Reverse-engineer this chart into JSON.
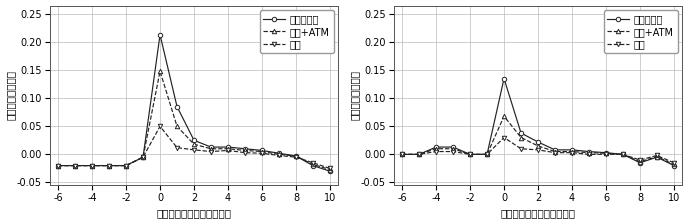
{
  "weeks": [
    -6,
    -5,
    -4,
    -3,
    -2,
    -1,
    0,
    1,
    2,
    3,
    4,
    5,
    6,
    7,
    8,
    9,
    10
  ],
  "left": {
    "all_spending": [
      -0.02,
      -0.02,
      -0.02,
      -0.02,
      -0.02,
      -0.005,
      0.213,
      0.085,
      0.025,
      0.013,
      0.013,
      0.01,
      0.007,
      0.002,
      -0.003,
      -0.02,
      -0.03
    ],
    "consumption_atm": [
      -0.02,
      -0.02,
      -0.02,
      -0.02,
      -0.02,
      -0.005,
      0.148,
      0.05,
      0.018,
      0.01,
      0.01,
      0.007,
      0.005,
      0.0,
      -0.003,
      -0.018,
      -0.027
    ],
    "consumption": [
      -0.02,
      -0.02,
      -0.02,
      -0.02,
      -0.02,
      -0.005,
      0.05,
      0.012,
      0.008,
      0.005,
      0.007,
      0.003,
      0.002,
      -0.002,
      -0.005,
      -0.015,
      -0.025
    ]
  },
  "right": {
    "all_spending": [
      0.0,
      0.0,
      0.013,
      0.013,
      0.0,
      0.0,
      0.135,
      0.038,
      0.022,
      0.008,
      0.008,
      0.005,
      0.003,
      0.0,
      -0.015,
      -0.005,
      -0.02
    ],
    "consumption_atm": [
      0.0,
      0.0,
      0.01,
      0.01,
      0.0,
      0.0,
      0.068,
      0.03,
      0.015,
      0.005,
      0.005,
      0.003,
      0.002,
      0.0,
      -0.013,
      -0.004,
      -0.018
    ],
    "consumption": [
      0.0,
      0.0,
      0.005,
      0.005,
      0.0,
      0.0,
      0.03,
      0.01,
      0.008,
      0.003,
      0.003,
      0.0,
      0.0,
      0.0,
      -0.01,
      -0.002,
      -0.015
    ]
  },
  "legend_labels": [
    "全ての支出",
    "消費+ATM",
    "消費"
  ],
  "ylabel": "給付金への反応度",
  "xlabel": "給付を受けた週からの週数",
  "ylim": [
    -0.055,
    0.265
  ],
  "yticks": [
    -0.05,
    0.0,
    0.05,
    0.1,
    0.15,
    0.2,
    0.25
  ],
  "xticks": [
    -6,
    -4,
    -2,
    0,
    2,
    4,
    6,
    8,
    10
  ],
  "background_color": "#ffffff",
  "grid_color": "#bbbbbb",
  "line_color": "#222222"
}
